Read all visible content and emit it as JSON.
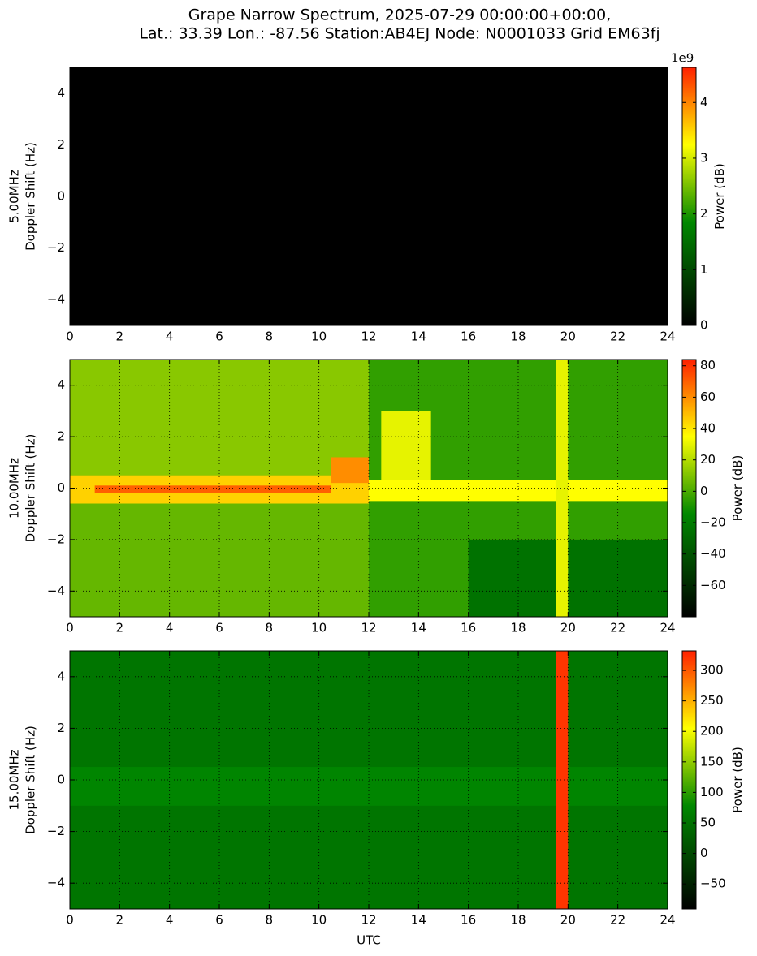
{
  "title": [
    "Grape Narrow Spectrum, 2025-07-29 00:00:00+00:00,",
    "Lat.: 33.39 Lon.: -87.56 Station:AB4EJ Node: N0001033 Grid EM63fj"
  ],
  "colormap": [
    [
      0,
      "#000000"
    ],
    [
      0.4,
      "#008800"
    ],
    [
      0.7,
      "#ffff00"
    ],
    [
      1,
      "#ff2000"
    ]
  ],
  "chart_data": [
    {
      "type": "heatmap",
      "ylabel": [
        "5.00MHz",
        "Doppler Shift (Hz)"
      ],
      "xlim": [
        0,
        24
      ],
      "xticks": [
        0,
        2,
        4,
        6,
        8,
        10,
        12,
        14,
        16,
        18,
        20,
        22,
        24
      ],
      "ylim": [
        -5,
        5
      ],
      "yticks": [
        {
          "value": -4,
          "label": "−4"
        },
        {
          "value": -2,
          "label": "−2"
        },
        0,
        2,
        4
      ],
      "grid": true,
      "colorbar": {
        "label": "Power (dB)",
        "offset_text": "1e9",
        "lim": [
          0,
          4.63
        ],
        "ticks": [
          0,
          1,
          2,
          3,
          4
        ]
      },
      "cells": [
        {
          "x": [
            0,
            24
          ],
          "y": [
            -5,
            5
          ],
          "value": 0
        }
      ]
    },
    {
      "type": "heatmap",
      "ylabel": [
        "10.00MHz",
        "Doppler Shift (Hz)"
      ],
      "xlim": [
        0,
        24
      ],
      "xticks": [
        0,
        2,
        4,
        6,
        8,
        10,
        12,
        14,
        16,
        18,
        20,
        22,
        24
      ],
      "ylim": [
        -5,
        5
      ],
      "yticks": [
        {
          "value": -4,
          "label": "−4"
        },
        {
          "value": -2,
          "label": "−2"
        },
        0,
        2,
        4
      ],
      "grid": true,
      "colorbar": {
        "label": "Power (dB)",
        "lim": [
          -80,
          84
        ],
        "ticks": [
          {
            "value": -60,
            "label": "−60"
          },
          {
            "value": -40,
            "label": "−40"
          },
          {
            "value": -20,
            "label": "−20"
          },
          0,
          20,
          40,
          60,
          80
        ]
      },
      "cells": [
        {
          "x": [
            0,
            24
          ],
          "y": [
            -5,
            5
          ],
          "value": -5
        },
        {
          "x": [
            0,
            12
          ],
          "y": [
            0.5,
            5
          ],
          "value": 12
        },
        {
          "x": [
            0,
            12
          ],
          "y": [
            -5,
            -0.6
          ],
          "value": 5
        },
        {
          "x": [
            16,
            24
          ],
          "y": [
            -5,
            -2
          ],
          "value": -25
        },
        {
          "x": [
            12.5,
            14.5
          ],
          "y": [
            0.3,
            3
          ],
          "value": 30
        },
        {
          "x": [
            0,
            12
          ],
          "y": [
            -0.6,
            0.5
          ],
          "value": 45
        },
        {
          "x": [
            12,
            24
          ],
          "y": [
            -0.5,
            0.3
          ],
          "value": 35
        },
        {
          "x": [
            1,
            10.5
          ],
          "y": [
            -0.2,
            0.1
          ],
          "value": 70
        },
        {
          "x": [
            10.5,
            12
          ],
          "y": [
            0.2,
            1.2
          ],
          "value": 60
        },
        {
          "x": [
            19.5,
            20
          ],
          "y": [
            -5,
            5
          ],
          "value": 30
        }
      ]
    },
    {
      "type": "heatmap",
      "ylabel": [
        "15.00MHz",
        "Doppler Shift (Hz)"
      ],
      "xlabel": "UTC",
      "xlim": [
        0,
        24
      ],
      "xticks": [
        0,
        2,
        4,
        6,
        8,
        10,
        12,
        14,
        16,
        18,
        20,
        22,
        24
      ],
      "ylim": [
        -5,
        5
      ],
      "yticks": [
        {
          "value": -4,
          "label": "−4"
        },
        {
          "value": -2,
          "label": "−2"
        },
        0,
        2,
        4
      ],
      "grid": true,
      "colorbar": {
        "label": "Power (dB)",
        "lim": [
          -91,
          332
        ],
        "ticks": [
          {
            "value": -50,
            "label": "−50"
          },
          0,
          50,
          100,
          150,
          200,
          250,
          300
        ]
      },
      "cells": [
        {
          "x": [
            0,
            24
          ],
          "y": [
            -5,
            5
          ],
          "value": 55
        },
        {
          "x": [
            0,
            24
          ],
          "y": [
            -1,
            0.5
          ],
          "value": 75
        },
        {
          "x": [
            19.5,
            20
          ],
          "y": [
            -5,
            5
          ],
          "value": 320
        }
      ]
    }
  ]
}
